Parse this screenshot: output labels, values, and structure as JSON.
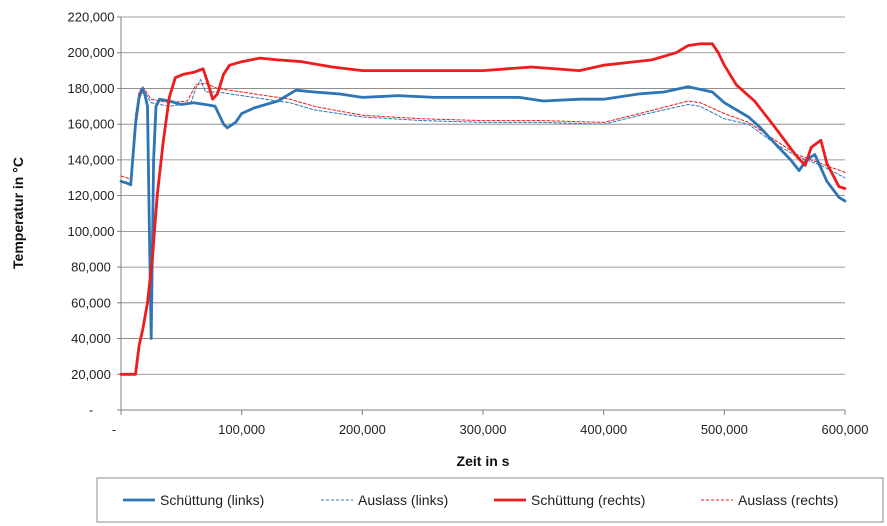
{
  "chart_data": {
    "type": "line",
    "title": "",
    "xlabel": "Zeit in s",
    "ylabel": "Temperatur in °C",
    "xlim": [
      0,
      600000
    ],
    "ylim": [
      0,
      220000
    ],
    "x_ticks": [
      0,
      100000,
      200000,
      300000,
      400000,
      500000,
      600000
    ],
    "x_tick_labels": [
      "-",
      "100,000",
      "200,000",
      "300,000",
      "400,000",
      "500,000",
      "600,000"
    ],
    "y_ticks": [
      0,
      20000,
      40000,
      60000,
      80000,
      100000,
      120000,
      140000,
      160000,
      180000,
      200000,
      220000
    ],
    "y_tick_labels": [
      "-",
      "20,000",
      "40,000",
      "60,000",
      "80,000",
      "100,000",
      "120,000",
      "140,000",
      "160,000",
      "180,000",
      "200,000",
      "220,000"
    ],
    "grid": "horizontal",
    "legend_position": "bottom",
    "series": [
      {
        "name": "Schüttung (links)",
        "color": "#2e75b6",
        "style": "solid",
        "points": [
          [
            0,
            128000
          ],
          [
            5000,
            127000
          ],
          [
            8000,
            126000
          ],
          [
            12000,
            160000
          ],
          [
            15000,
            175000
          ],
          [
            18000,
            180000
          ],
          [
            20000,
            176000
          ],
          [
            22000,
            170000
          ],
          [
            23500,
            100000
          ],
          [
            25000,
            40000
          ],
          [
            27000,
            140000
          ],
          [
            29000,
            170000
          ],
          [
            32000,
            174000
          ],
          [
            40000,
            173000
          ],
          [
            50000,
            171000
          ],
          [
            60000,
            172000
          ],
          [
            70000,
            171000
          ],
          [
            78000,
            170000
          ],
          [
            85000,
            160000
          ],
          [
            88000,
            158000
          ],
          [
            95000,
            161000
          ],
          [
            100000,
            166000
          ],
          [
            110000,
            169000
          ],
          [
            120000,
            171000
          ],
          [
            130000,
            173000
          ],
          [
            140000,
            177000
          ],
          [
            145000,
            179000
          ],
          [
            160000,
            178000
          ],
          [
            180000,
            177000
          ],
          [
            200000,
            175000
          ],
          [
            230000,
            176000
          ],
          [
            260000,
            175000
          ],
          [
            300000,
            175000
          ],
          [
            330000,
            175000
          ],
          [
            350000,
            173000
          ],
          [
            380000,
            174000
          ],
          [
            400000,
            174000
          ],
          [
            430000,
            177000
          ],
          [
            450000,
            178000
          ],
          [
            470000,
            181000
          ],
          [
            490000,
            178000
          ],
          [
            500000,
            172000
          ],
          [
            520000,
            164000
          ],
          [
            530000,
            158000
          ],
          [
            545000,
            147000
          ],
          [
            555000,
            140000
          ],
          [
            562000,
            134000
          ],
          [
            568000,
            140000
          ],
          [
            575000,
            143000
          ],
          [
            585000,
            128000
          ],
          [
            595000,
            119000
          ],
          [
            600000,
            117000
          ]
        ]
      },
      {
        "name": "Auslass (links)",
        "color": "#2e75b6",
        "style": "dashed",
        "points": [
          [
            0,
            128000
          ],
          [
            5000,
            127000
          ],
          [
            8000,
            126000
          ],
          [
            12000,
            165000
          ],
          [
            15000,
            178000
          ],
          [
            18000,
            180000
          ],
          [
            25000,
            172000
          ],
          [
            40000,
            170000
          ],
          [
            50000,
            171000
          ],
          [
            58000,
            172000
          ],
          [
            62000,
            180000
          ],
          [
            66000,
            185000
          ],
          [
            70000,
            178000
          ],
          [
            80000,
            178000
          ],
          [
            100000,
            176000
          ],
          [
            120000,
            174000
          ],
          [
            140000,
            172000
          ],
          [
            160000,
            168000
          ],
          [
            200000,
            164000
          ],
          [
            250000,
            162000
          ],
          [
            300000,
            161000
          ],
          [
            350000,
            161000
          ],
          [
            400000,
            160000
          ],
          [
            430000,
            165000
          ],
          [
            470000,
            171000
          ],
          [
            480000,
            170000
          ],
          [
            500000,
            163000
          ],
          [
            520000,
            160000
          ],
          [
            540000,
            150000
          ],
          [
            560000,
            142000
          ],
          [
            580000,
            137000
          ],
          [
            600000,
            130000
          ]
        ]
      },
      {
        "name": "Schüttung (rechts)",
        "color": "#ee1c1c",
        "style": "solid",
        "points": [
          [
            0,
            20000
          ],
          [
            12000,
            20000
          ],
          [
            15000,
            36000
          ],
          [
            18000,
            45000
          ],
          [
            22000,
            60000
          ],
          [
            26000,
            85000
          ],
          [
            30000,
            120000
          ],
          [
            35000,
            150000
          ],
          [
            40000,
            175000
          ],
          [
            45000,
            186000
          ],
          [
            52000,
            188000
          ],
          [
            60000,
            189000
          ],
          [
            68000,
            191000
          ],
          [
            72000,
            183000
          ],
          [
            76000,
            174000
          ],
          [
            80000,
            177000
          ],
          [
            85000,
            188000
          ],
          [
            90000,
            193000
          ],
          [
            100000,
            195000
          ],
          [
            115000,
            197000
          ],
          [
            130000,
            196000
          ],
          [
            150000,
            195000
          ],
          [
            175000,
            192000
          ],
          [
            200000,
            190000
          ],
          [
            250000,
            190000
          ],
          [
            300000,
            190000
          ],
          [
            340000,
            192000
          ],
          [
            380000,
            190000
          ],
          [
            400000,
            193000
          ],
          [
            440000,
            196000
          ],
          [
            460000,
            200000
          ],
          [
            470000,
            204000
          ],
          [
            480000,
            205000
          ],
          [
            490000,
            205000
          ],
          [
            495000,
            200000
          ],
          [
            500000,
            193000
          ],
          [
            510000,
            182000
          ],
          [
            525000,
            173000
          ],
          [
            540000,
            160000
          ],
          [
            560000,
            142000
          ],
          [
            567000,
            137000
          ],
          [
            572000,
            147000
          ],
          [
            580000,
            151000
          ],
          [
            585000,
            138000
          ],
          [
            595000,
            125000
          ],
          [
            600000,
            124000
          ]
        ]
      },
      {
        "name": "Auslass (rechts)",
        "color": "#ee1c1c",
        "style": "dashed",
        "points": [
          [
            0,
            131000
          ],
          [
            5000,
            130000
          ],
          [
            8000,
            129000
          ],
          [
            12000,
            165000
          ],
          [
            15000,
            178000
          ],
          [
            18000,
            181000
          ],
          [
            25000,
            174000
          ],
          [
            40000,
            172000
          ],
          [
            55000,
            173000
          ],
          [
            62000,
            182000
          ],
          [
            70000,
            183000
          ],
          [
            80000,
            180000
          ],
          [
            100000,
            178000
          ],
          [
            120000,
            176000
          ],
          [
            140000,
            174000
          ],
          [
            160000,
            170000
          ],
          [
            200000,
            165000
          ],
          [
            250000,
            163000
          ],
          [
            300000,
            162000
          ],
          [
            350000,
            162000
          ],
          [
            400000,
            161000
          ],
          [
            430000,
            166000
          ],
          [
            470000,
            173000
          ],
          [
            480000,
            172000
          ],
          [
            500000,
            166000
          ],
          [
            520000,
            161000
          ],
          [
            540000,
            152000
          ],
          [
            560000,
            143000
          ],
          [
            580000,
            138000
          ],
          [
            600000,
            133000
          ]
        ]
      }
    ]
  }
}
